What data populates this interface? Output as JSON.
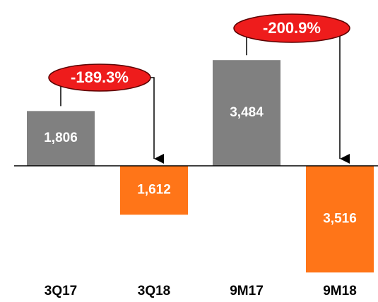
{
  "chart_data": {
    "type": "bar",
    "categories": [
      "3Q17",
      "3Q18",
      "9M17",
      "9M18"
    ],
    "values": [
      1806,
      -1612,
      3484,
      -3516
    ],
    "value_labels": [
      "1,806",
      "1,612",
      "3,484",
      "3,516"
    ],
    "colors": [
      "#808080",
      "#ff7518",
      "#808080",
      "#ff7518"
    ],
    "ylim": [
      -4000,
      4000
    ],
    "annotations": [
      "-189.3%",
      "-200.9%"
    ]
  }
}
